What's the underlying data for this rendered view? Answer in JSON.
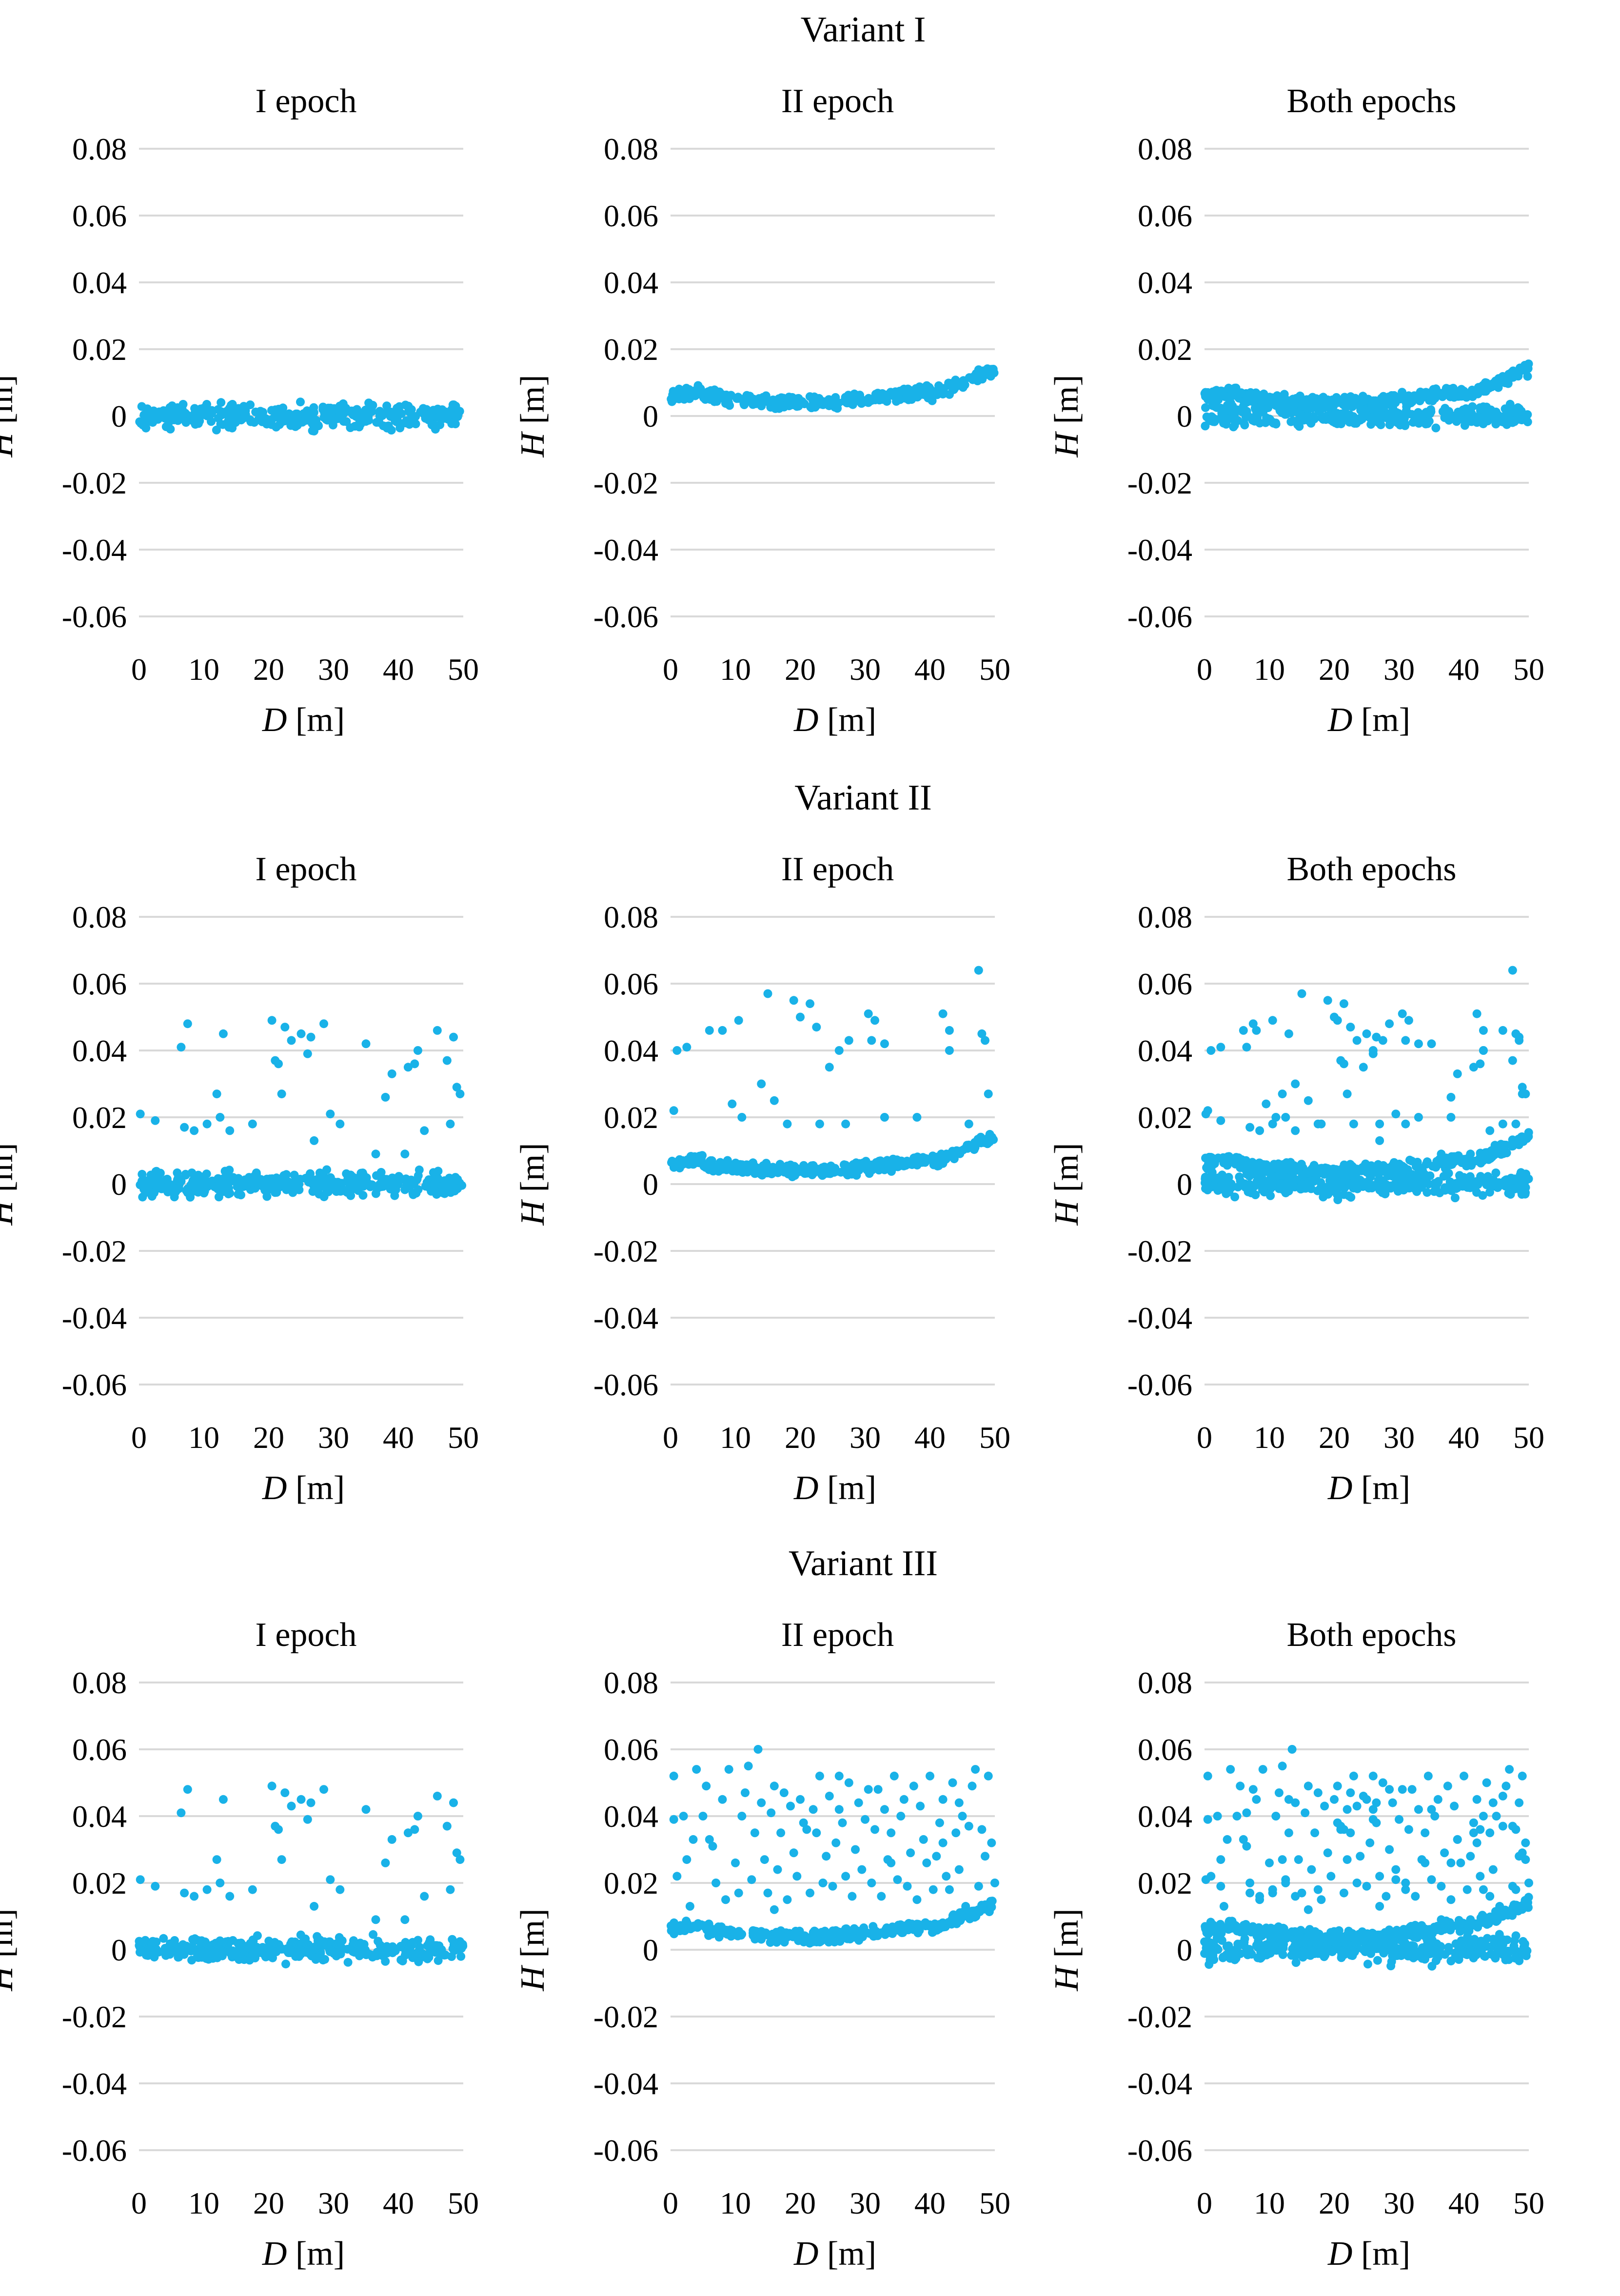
{
  "colors": {
    "marker": "#19b2e8",
    "grid": "#d9d9d9",
    "text": "#000000"
  },
  "chart_data": [
    {
      "variant": "Variant I",
      "plots": [
        {
          "type": "scatter",
          "title": "I epoch",
          "xlabel_var": "D",
          "xlabel_unit": " [m]",
          "ylabel_var": "H",
          "ylabel_unit": " [m]",
          "xlim": [
            0,
            50
          ],
          "ylim": [
            -0.06,
            0.08
          ],
          "grid": true,
          "pattern": "e1",
          "outliers": "none"
        },
        {
          "type": "scatter",
          "title": "II epoch",
          "xlabel_var": "D",
          "xlabel_unit": " [m]",
          "ylabel_var": "H",
          "ylabel_unit": " [m]",
          "xlim": [
            0,
            50
          ],
          "ylim": [
            -0.06,
            0.08
          ],
          "grid": true,
          "pattern": "e2",
          "outliers": "none"
        },
        {
          "type": "scatter",
          "title": "Both epochs",
          "xlabel_var": "D",
          "xlabel_unit": " [m]",
          "ylabel_var": "H",
          "ylabel_unit": " [m]",
          "xlim": [
            0,
            50
          ],
          "ylim": [
            -0.06,
            0.08
          ],
          "grid": true,
          "pattern": "both",
          "outliers": "none"
        }
      ]
    },
    {
      "variant": "Variant II",
      "plots": [
        {
          "type": "scatter",
          "title": "I epoch",
          "xlabel_var": "D",
          "xlabel_unit": " [m]",
          "ylabel_var": "H",
          "ylabel_unit": " [m]",
          "xlim": [
            0,
            50
          ],
          "ylim": [
            -0.06,
            0.08
          ],
          "grid": true,
          "pattern": "e1",
          "outliers": "A"
        },
        {
          "type": "scatter",
          "title": "II epoch",
          "xlabel_var": "D",
          "xlabel_unit": " [m]",
          "ylabel_var": "H",
          "ylabel_unit": " [m]",
          "xlim": [
            0,
            50
          ],
          "ylim": [
            -0.06,
            0.08
          ],
          "grid": true,
          "pattern": "e2",
          "outliers": "B"
        },
        {
          "type": "scatter",
          "title": "Both epochs",
          "xlabel_var": "D",
          "xlabel_unit": " [m]",
          "ylabel_var": "H",
          "ylabel_unit": " [m]",
          "xlim": [
            0,
            50
          ],
          "ylim": [
            -0.06,
            0.08
          ],
          "grid": true,
          "pattern": "both",
          "outliers": "AB"
        }
      ]
    },
    {
      "variant": "Variant III",
      "plots": [
        {
          "type": "scatter",
          "title": "I epoch",
          "xlabel_var": "D",
          "xlabel_unit": " [m]",
          "ylabel_var": "H",
          "ylabel_unit": " [m]",
          "xlim": [
            0,
            50
          ],
          "ylim": [
            -0.06,
            0.08
          ],
          "grid": true,
          "pattern": "e1",
          "outliers": "A"
        },
        {
          "type": "scatter",
          "title": "II epoch",
          "xlabel_var": "D",
          "xlabel_unit": " [m]",
          "ylabel_var": "H",
          "ylabel_unit": " [m]",
          "xlim": [
            0,
            50
          ],
          "ylim": [
            -0.06,
            0.08
          ],
          "grid": true,
          "pattern": "e2",
          "outliers": "C"
        },
        {
          "type": "scatter",
          "title": "Both epochs",
          "xlabel_var": "D",
          "xlabel_unit": " [m]",
          "ylabel_var": "H",
          "ylabel_unit": " [m]",
          "xlim": [
            0,
            50
          ],
          "ylim": [
            -0.06,
            0.08
          ],
          "grid": true,
          "pattern": "both",
          "outliers": "AC"
        }
      ]
    }
  ],
  "axes": {
    "y_ticks": [
      0.08,
      0.06,
      0.04,
      0.02,
      0,
      -0.02,
      -0.04,
      -0.06
    ],
    "y_tick_labels": [
      "0.08",
      "0.06",
      "0.04",
      "0.02",
      "0",
      "-0.02",
      "-0.04",
      "-0.06"
    ],
    "x_ticks": [
      0,
      10,
      20,
      30,
      40,
      50
    ],
    "x_tick_labels": [
      "0",
      "10",
      "20",
      "30",
      "40",
      "50"
    ]
  },
  "outlier_sets": {
    "A": [
      [
        0.2,
        0.021
      ],
      [
        2.5,
        0.019
      ],
      [
        6.5,
        0.041
      ],
      [
        7.5,
        0.048
      ],
      [
        7,
        0.017
      ],
      [
        8.5,
        0.016
      ],
      [
        10.5,
        0.018
      ],
      [
        12,
        0.027
      ],
      [
        12.5,
        0.02
      ],
      [
        13,
        0.045
      ],
      [
        14,
        0.016
      ],
      [
        17.5,
        0.018
      ],
      [
        20.5,
        0.049
      ],
      [
        21,
        0.037
      ],
      [
        21.5,
        0.036
      ],
      [
        22,
        0.027
      ],
      [
        22.5,
        0.047
      ],
      [
        23.5,
        0.043
      ],
      [
        25,
        0.045
      ],
      [
        26,
        0.039
      ],
      [
        26.5,
        0.044
      ],
      [
        27,
        0.013
      ],
      [
        28.5,
        0.048
      ],
      [
        29.5,
        0.021
      ],
      [
        31,
        0.018
      ],
      [
        35,
        0.042
      ],
      [
        36.5,
        0.009
      ],
      [
        38,
        0.026
      ],
      [
        39,
        0.033
      ],
      [
        41,
        0.009
      ],
      [
        41.5,
        0.035
      ],
      [
        42.5,
        0.036
      ],
      [
        43,
        0.04
      ],
      [
        44,
        0.016
      ],
      [
        46,
        0.046
      ],
      [
        47.5,
        0.037
      ],
      [
        48,
        0.018
      ],
      [
        48.5,
        0.044
      ],
      [
        49,
        0.029
      ],
      [
        49.5,
        0.027
      ]
    ],
    "B": [
      [
        0.5,
        0.022
      ],
      [
        1,
        0.04
      ],
      [
        2.5,
        0.041
      ],
      [
        6,
        0.046
      ],
      [
        8,
        0.046
      ],
      [
        9.5,
        0.024
      ],
      [
        10.5,
        0.049
      ],
      [
        11,
        0.02
      ],
      [
        14,
        0.03
      ],
      [
        15,
        0.057
      ],
      [
        16,
        0.025
      ],
      [
        18,
        0.018
      ],
      [
        19,
        0.055
      ],
      [
        20,
        0.05
      ],
      [
        21.5,
        0.054
      ],
      [
        22.5,
        0.047
      ],
      [
        23,
        0.018
      ],
      [
        24.5,
        0.035
      ],
      [
        26,
        0.04
      ],
      [
        27,
        0.018
      ],
      [
        27.5,
        0.043
      ],
      [
        30.5,
        0.051
      ],
      [
        31.5,
        0.049
      ],
      [
        31,
        0.043
      ],
      [
        33,
        0.042
      ],
      [
        33,
        0.02
      ],
      [
        38,
        0.02
      ],
      [
        42,
        0.051
      ],
      [
        43,
        0.046
      ],
      [
        43,
        0.04
      ],
      [
        46,
        0.018
      ],
      [
        47.5,
        0.064
      ],
      [
        48,
        0.045
      ],
      [
        48.5,
        0.043
      ],
      [
        49,
        0.027
      ]
    ],
    "C": [
      [
        0.5,
        0.052
      ],
      [
        0.5,
        0.039
      ],
      [
        1,
        0.022
      ],
      [
        2,
        0.04
      ],
      [
        2.5,
        0.027
      ],
      [
        3,
        0.013
      ],
      [
        4,
        0.054
      ],
      [
        5,
        0.04
      ],
      [
        5.5,
        0.049
      ],
      [
        6,
        0.033
      ],
      [
        6.5,
        0.031
      ],
      [
        7,
        0.02
      ],
      [
        8,
        0.045
      ],
      [
        8.5,
        0.015
      ],
      [
        9,
        0.054
      ],
      [
        10,
        0.026
      ],
      [
        10.5,
        0.017
      ],
      [
        11,
        0.04
      ],
      [
        11.5,
        0.047
      ],
      [
        12,
        0.055
      ],
      [
        12.5,
        0.021
      ],
      [
        13,
        0.035
      ],
      [
        13.5,
        0.06
      ],
      [
        14,
        0.044
      ],
      [
        14.5,
        0.027
      ],
      [
        15,
        0.017
      ],
      [
        15.5,
        0.041
      ],
      [
        16,
        0.049
      ],
      [
        16.5,
        0.024
      ],
      [
        17,
        0.035
      ],
      [
        17.5,
        0.047
      ],
      [
        18,
        0.015
      ],
      [
        18.5,
        0.043
      ],
      [
        19,
        0.029
      ],
      [
        19.5,
        0.022
      ],
      [
        20,
        0.045
      ],
      [
        20.5,
        0.038
      ],
      [
        21,
        0.036
      ],
      [
        21.5,
        0.017
      ],
      [
        22,
        0.042
      ],
      [
        22.5,
        0.035
      ],
      [
        23,
        0.052
      ],
      [
        23.5,
        0.02
      ],
      [
        24,
        0.028
      ],
      [
        24.5,
        0.046
      ],
      [
        25,
        0.019
      ],
      [
        25.5,
        0.032
      ],
      [
        26,
        0.052
      ],
      [
        26.5,
        0.038
      ],
      [
        27,
        0.022
      ],
      [
        27.5,
        0.05
      ],
      [
        28,
        0.016
      ],
      [
        28.5,
        0.03
      ],
      [
        29,
        0.044
      ],
      [
        29.5,
        0.024
      ],
      [
        30,
        0.039
      ],
      [
        30.5,
        0.048
      ],
      [
        31,
        0.02
      ],
      [
        31.5,
        0.036
      ],
      [
        32,
        0.048
      ],
      [
        32.5,
        0.016
      ],
      [
        33,
        0.042
      ],
      [
        33.5,
        0.027
      ],
      [
        34,
        0.035
      ],
      [
        34.5,
        0.052
      ],
      [
        35,
        0.021
      ],
      [
        35.5,
        0.04
      ],
      [
        36,
        0.045
      ],
      [
        36.5,
        0.019
      ],
      [
        37,
        0.029
      ],
      [
        37.5,
        0.049
      ],
      [
        38,
        0.015
      ],
      [
        38.5,
        0.043
      ],
      [
        39,
        0.033
      ],
      [
        39.5,
        0.026
      ],
      [
        40,
        0.052
      ],
      [
        40.5,
        0.018
      ],
      [
        41,
        0.028
      ],
      [
        41.5,
        0.038
      ],
      [
        42,
        0.045
      ],
      [
        42.5,
        0.022
      ],
      [
        43,
        0.018
      ],
      [
        43.5,
        0.05
      ],
      [
        44,
        0.035
      ],
      [
        44.5,
        0.024
      ],
      [
        45,
        0.04
      ],
      [
        45.5,
        0.013
      ],
      [
        46,
        0.037
      ],
      [
        46.5,
        0.049
      ],
      [
        47,
        0.054
      ],
      [
        47.5,
        0.019
      ],
      [
        48,
        0.036
      ],
      [
        48.5,
        0.028
      ],
      [
        49,
        0.052
      ],
      [
        49.5,
        0.032
      ],
      [
        50,
        0.02
      ],
      [
        3.5,
        0.033
      ],
      [
        16,
        0.012
      ],
      [
        26,
        0.042
      ],
      [
        34,
        0.026
      ],
      [
        42,
        0.032
      ],
      [
        44.5,
        0.044
      ]
    ]
  }
}
